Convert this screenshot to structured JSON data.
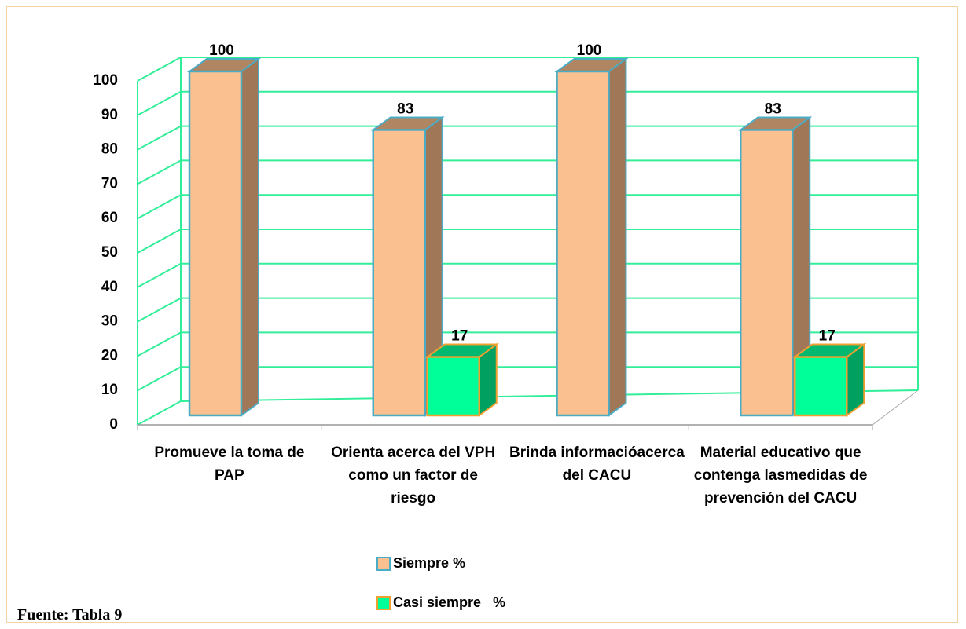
{
  "chart_data": {
    "type": "bar",
    "categories": [
      "Promueve la toma de PAP",
      "Orienta acerca del VPH como un factor de riesgo",
      "Brinda informacióacerca del CACU",
      "Material educativo que contenga lasmedidas de prevención  del CACU"
    ],
    "series": [
      {
        "name": "Siempre %",
        "color": "#fac090",
        "values": [
          100,
          83,
          100,
          83
        ]
      },
      {
        "name": "Casi siempre   %",
        "color": "#00ff99",
        "values": [
          null,
          17,
          null,
          17
        ]
      }
    ],
    "ylim": [
      0,
      100
    ],
    "yticks": [
      0,
      10,
      20,
      30,
      40,
      50,
      60,
      70,
      80,
      90,
      100
    ],
    "grid": true,
    "legend": "bottom",
    "source": "Fuente: Tabla 9"
  }
}
